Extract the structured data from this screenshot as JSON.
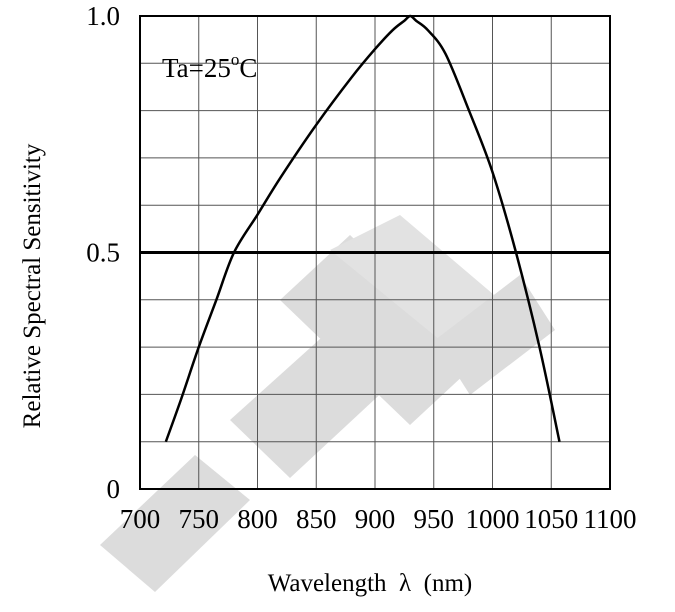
{
  "chart_data": {
    "type": "line",
    "title": "",
    "xlabel": "Wavelength  λ  (nm)",
    "ylabel": "Relative Spectral Sensitivity",
    "xlim": [
      700,
      1100
    ],
    "ylim": [
      0,
      1.0
    ],
    "x_ticks": [
      "700",
      "750",
      "800",
      "850",
      "900",
      "950",
      "1000",
      "1050",
      "1100"
    ],
    "y_ticks": [
      "0",
      "0.5",
      "1.0"
    ],
    "grid": true,
    "reference_line_y": 0.5,
    "annotation": {
      "text": "Ta=25",
      "superscript": "o",
      "suffix": "C"
    },
    "series": [
      {
        "x": [
          722,
          735,
          750,
          765,
          780,
          800,
          820,
          850,
          880,
          900,
          915,
          925,
          930,
          935,
          945,
          960,
          980,
          1000,
          1020,
          1040,
          1057
        ],
        "values": [
          0.1,
          0.19,
          0.3,
          0.4,
          0.5,
          0.58,
          0.66,
          0.77,
          0.87,
          0.93,
          0.97,
          0.99,
          1.0,
          0.99,
          0.97,
          0.92,
          0.8,
          0.67,
          0.5,
          0.3,
          0.1
        ]
      }
    ]
  },
  "watermark": {
    "text": "ICHT",
    "color": "#d9d9d9"
  }
}
